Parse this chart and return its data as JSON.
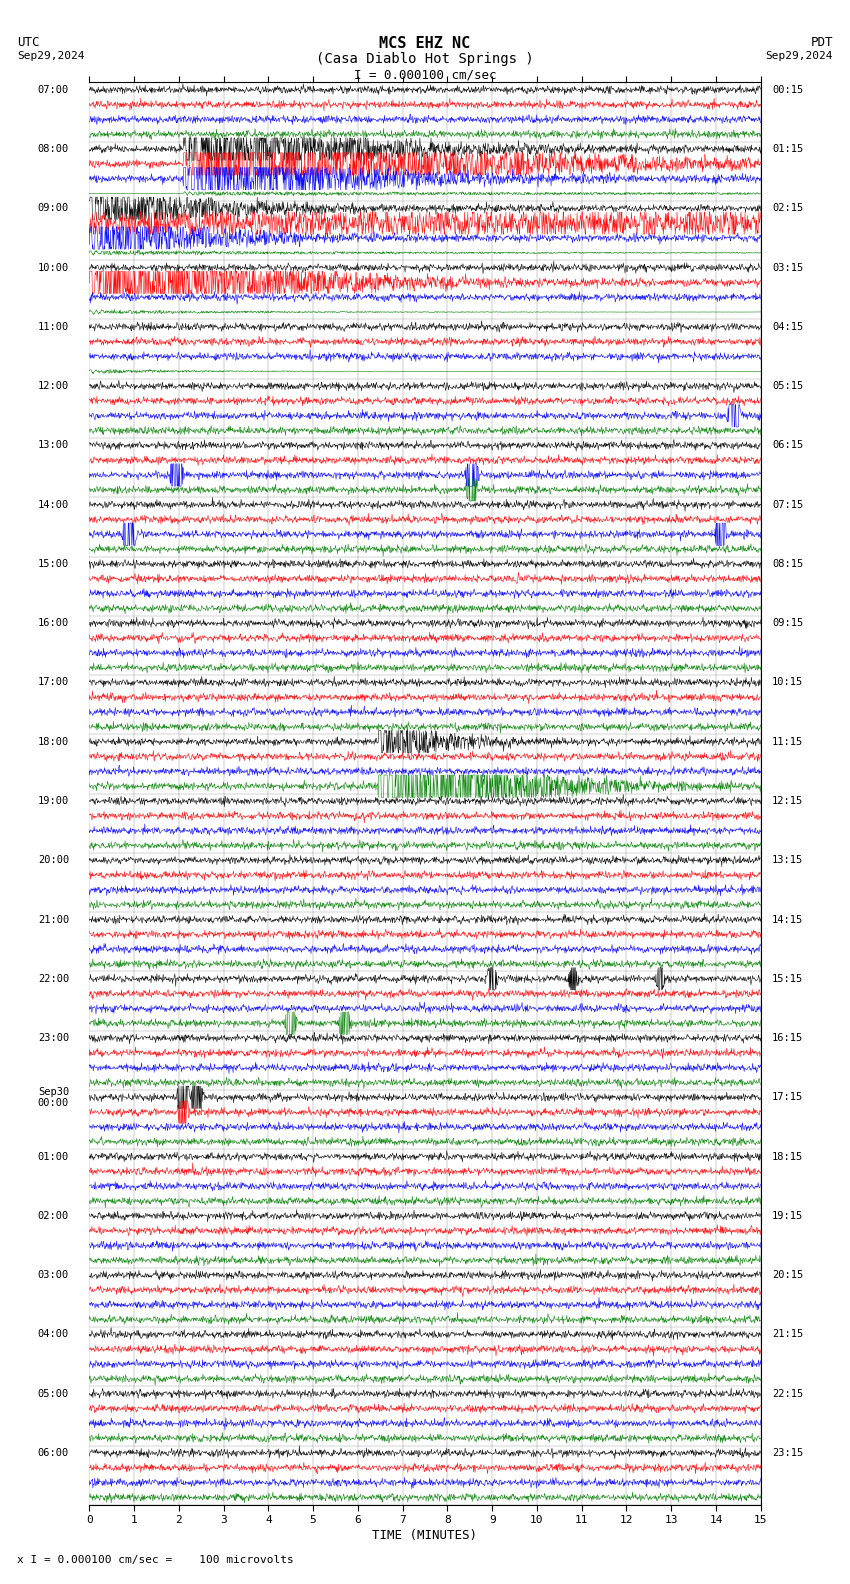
{
  "title_line1": "MCS EHZ NC",
  "title_line2": "(Casa Diablo Hot Springs )",
  "scale_label": "I = 0.000100 cm/sec",
  "utc_label": "UTC",
  "pdt_label": "PDT",
  "date_left": "Sep29,2024",
  "date_right": "Sep29,2024",
  "xlabel": "TIME (MINUTES)",
  "footer": "x I = 0.000100 cm/sec =    100 microvolts",
  "xmin": 0,
  "xmax": 15,
  "trace_colors": [
    "black",
    "red",
    "blue",
    "green"
  ],
  "bg_color": "#ffffff",
  "utc_times": [
    "07:00",
    "08:00",
    "09:00",
    "10:00",
    "11:00",
    "12:00",
    "13:00",
    "14:00",
    "15:00",
    "16:00",
    "17:00",
    "18:00",
    "19:00",
    "20:00",
    "21:00",
    "22:00",
    "23:00",
    "Sep30\n00:00",
    "01:00",
    "02:00",
    "03:00",
    "04:00",
    "05:00",
    "06:00"
  ],
  "pdt_times": [
    "00:15",
    "01:15",
    "02:15",
    "03:15",
    "04:15",
    "05:15",
    "06:15",
    "07:15",
    "08:15",
    "09:15",
    "10:15",
    "11:15",
    "12:15",
    "13:15",
    "14:15",
    "15:15",
    "16:15",
    "17:15",
    "18:15",
    "19:15",
    "20:15",
    "21:15",
    "22:15",
    "23:15"
  ],
  "num_rows": 24,
  "traces_per_row": 4,
  "seed": 42
}
